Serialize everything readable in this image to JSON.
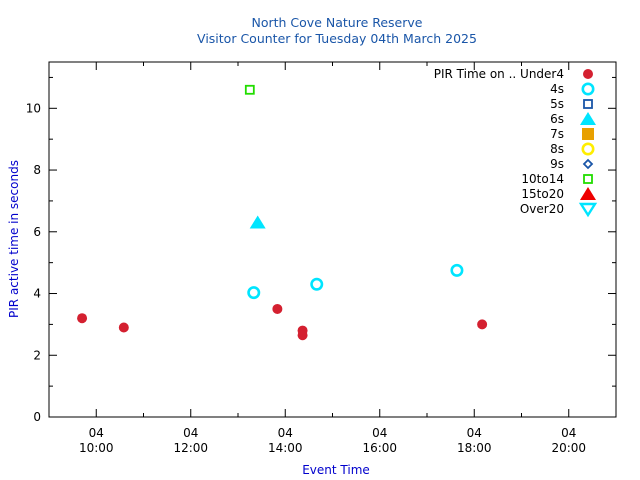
{
  "chart_data": {
    "type": "scatter",
    "title": "North Cove Nature Reserve",
    "subtitle": "Visitor Counter for Tuesday 04th March 2025",
    "xlabel": "Event Time",
    "ylabel": "PIR active time in seconds",
    "xlim": [
      "09:00",
      "21:00"
    ],
    "ylim": [
      0,
      11.5
    ],
    "y_ticks": [
      0,
      2,
      4,
      6,
      8,
      10
    ],
    "x_ticks": [
      {
        "date": "04",
        "time": "10:00"
      },
      {
        "date": "04",
        "time": "12:00"
      },
      {
        "date": "04",
        "time": "14:00"
      },
      {
        "date": "04",
        "time": "16:00"
      },
      {
        "date": "04",
        "time": "18:00"
      },
      {
        "date": "04",
        "time": "20:00"
      }
    ],
    "x_minor_interval_minutes": 60,
    "y_minor_interval": 1,
    "grid": false,
    "legend_position": "top-right",
    "legend_title": "PIR Time on ..",
    "series": [
      {
        "name": "Under4",
        "marker": "filled-circle",
        "color": "#d42030",
        "points": [
          [
            "09:42",
            3.2
          ],
          [
            "10:35",
            2.9
          ],
          [
            "13:50",
            3.5
          ],
          [
            "14:22",
            2.8
          ],
          [
            "14:22",
            2.65
          ],
          [
            "18:10",
            3.0
          ]
        ]
      },
      {
        "name": "4s",
        "marker": "open-circle",
        "color": "#00e5ff",
        "points": [
          [
            "13:20",
            4.03
          ],
          [
            "14:40",
            4.3
          ],
          [
            "17:38",
            4.75
          ]
        ]
      },
      {
        "name": "5s",
        "marker": "open-square",
        "color": "#1a56a8",
        "points": []
      },
      {
        "name": "6s",
        "marker": "filled-triangle",
        "color": "#00e5ff",
        "points": [
          [
            "13:25",
            6.3
          ]
        ]
      },
      {
        "name": "7s",
        "marker": "filled-square",
        "color": "#e8a000",
        "points": []
      },
      {
        "name": "8s",
        "marker": "open-circle",
        "color": "#ffee00",
        "points": []
      },
      {
        "name": "9s",
        "marker": "open-diamond",
        "color": "#1a56a8",
        "points": []
      },
      {
        "name": "10to14",
        "marker": "open-square",
        "color": "#22dd00",
        "points": [
          [
            "13:15",
            10.6
          ]
        ]
      },
      {
        "name": "15to20",
        "marker": "filled-triangle",
        "color": "#ee0000",
        "points": []
      },
      {
        "name": "Over20",
        "marker": "open-triangle-down",
        "color": "#00e5ff",
        "points": []
      }
    ]
  }
}
